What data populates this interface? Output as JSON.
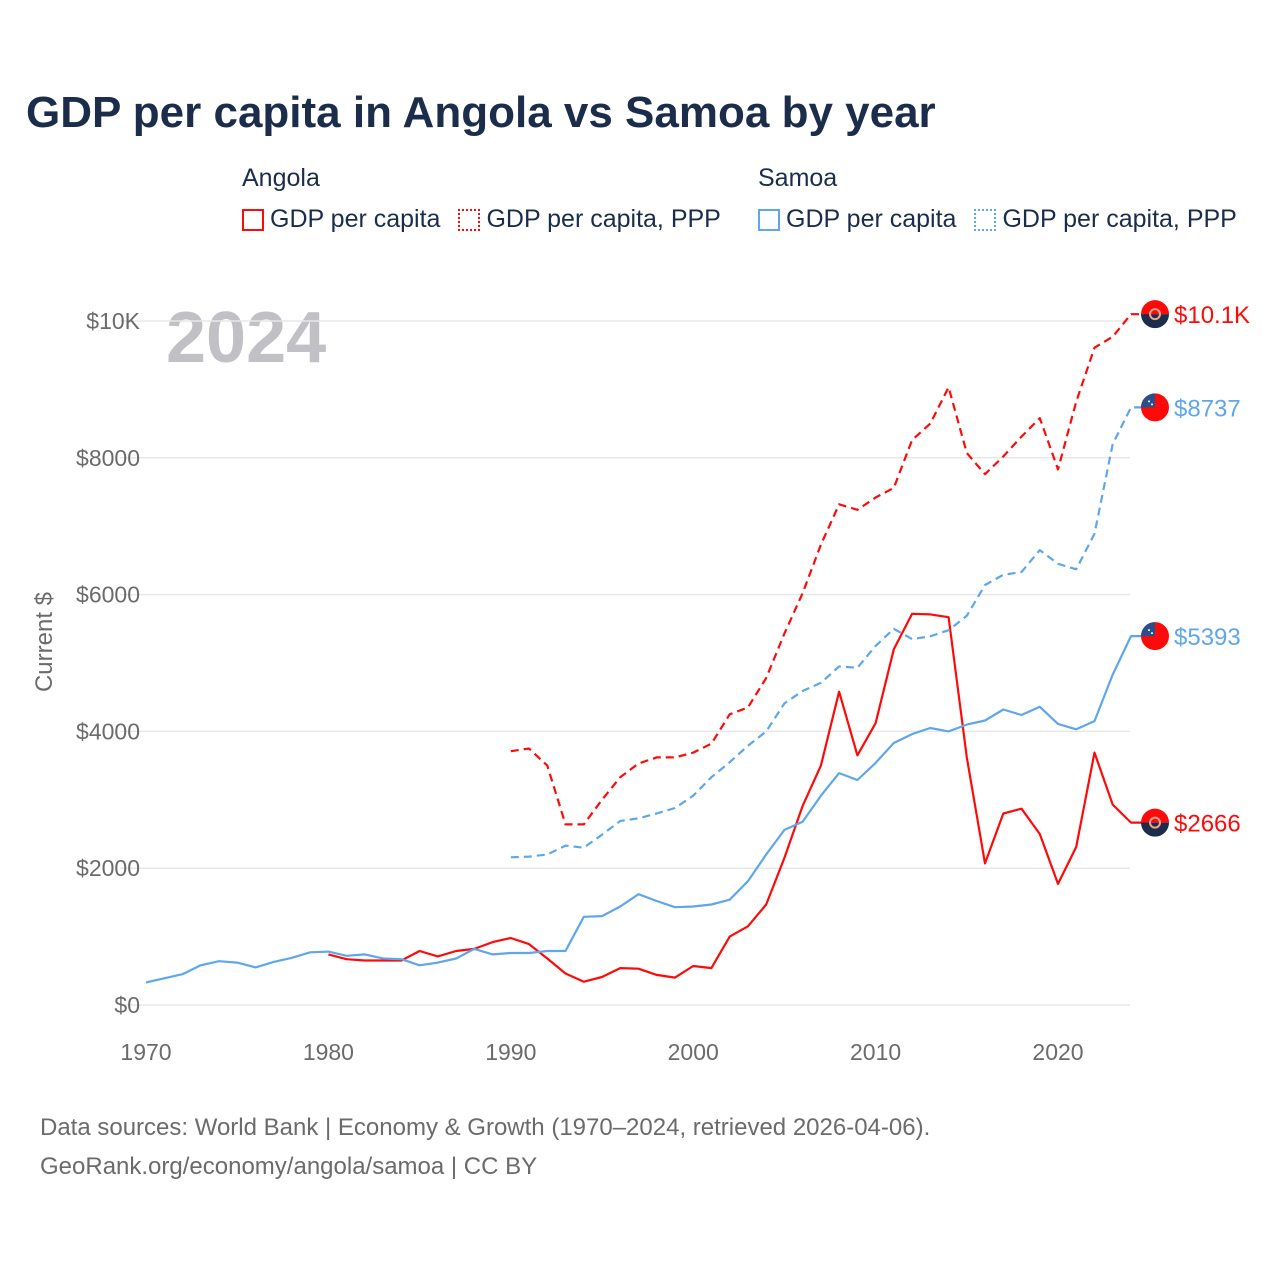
{
  "title": "GDP per capita in Angola vs Samoa by year",
  "legend": {
    "groups": [
      {
        "name": "Angola",
        "items": [
          "GDP per capita",
          "GDP per capita, PPP"
        ]
      },
      {
        "name": "Samoa",
        "items": [
          "GDP per capita",
          "GDP per capita, PPP"
        ]
      }
    ]
  },
  "colors": {
    "angola": "#ff0a0a",
    "samoa": "#5fa6ea",
    "grid": "#e8e8e8",
    "axis_text": "#6b6b6b",
    "year_watermark": "#c0c0c5"
  },
  "footer": {
    "line1": "Data sources: World Bank | Economy & Growth (1970–2024, retrieved 2026-04-06).",
    "line2": "GeoRank.org/economy/angola/samoa | CC BY"
  },
  "chart_data": {
    "type": "line",
    "title": "GDP per capita in Angola vs Samoa by year",
    "year_label": "2024",
    "xlabel": "",
    "ylabel": "Current $",
    "xlim": [
      1970,
      2024
    ],
    "ylim": [
      0,
      10000
    ],
    "xticks": [
      1970,
      1980,
      1990,
      2000,
      2010,
      2020
    ],
    "xtick_labels": [
      "1970",
      "1980",
      "1990",
      "2000",
      "2010",
      "2020"
    ],
    "yticks": [
      0,
      2000,
      4000,
      6000,
      8000,
      10000
    ],
    "ytick_labels": [
      "$0",
      "$2000",
      "$4000",
      "$6000",
      "$8000",
      "$10K"
    ],
    "grid": true,
    "legend_position": "top",
    "series": [
      {
        "name": "Angola GDP per capita",
        "country": "angola",
        "dashed": false,
        "start": 1980,
        "end_label": "$2666",
        "values": [
          740,
          670,
          650,
          650,
          650,
          790,
          710,
          790,
          820,
          920,
          980,
          890,
          680,
          460,
          340,
          410,
          540,
          530,
          440,
          400,
          570,
          540,
          1000,
          1150,
          1470,
          2150,
          2910,
          3500,
          4580,
          3650,
          4120,
          5200,
          5720,
          5710,
          5670,
          3620,
          2070,
          2800,
          2870,
          2500,
          1770,
          2310,
          3690,
          2930,
          2666
        ]
      },
      {
        "name": "Angola GDP per capita, PPP",
        "country": "angola",
        "dashed": true,
        "start": 1990,
        "end_label": "$10.1K",
        "values": [
          3710,
          3750,
          3500,
          2640,
          2640,
          3000,
          3330,
          3530,
          3620,
          3620,
          3690,
          3820,
          4250,
          4350,
          4780,
          5430,
          6020,
          6730,
          7320,
          7240,
          7420,
          7560,
          8260,
          8500,
          9030,
          8070,
          7760,
          8020,
          8310,
          8580,
          7830,
          8820,
          9610,
          9770,
          10100
        ]
      },
      {
        "name": "Samoa GDP per capita",
        "country": "samoa",
        "dashed": false,
        "start": 1970,
        "end_label": "$5393",
        "values": [
          330,
          390,
          450,
          580,
          640,
          620,
          550,
          630,
          690,
          770,
          780,
          720,
          740,
          680,
          670,
          580,
          620,
          680,
          820,
          740,
          760,
          760,
          790,
          790,
          1290,
          1300,
          1440,
          1620,
          1520,
          1430,
          1440,
          1470,
          1540,
          1810,
          2200,
          2560,
          2680,
          3060,
          3390,
          3290,
          3540,
          3830,
          3960,
          4050,
          4000,
          4100,
          4160,
          4320,
          4240,
          4360,
          4110,
          4030,
          4150,
          4830,
          5393
        ]
      },
      {
        "name": "Samoa GDP per capita, PPP",
        "country": "samoa",
        "dashed": true,
        "start": 1990,
        "end_label": "$8737",
        "values": [
          2160,
          2170,
          2200,
          2330,
          2300,
          2490,
          2690,
          2730,
          2800,
          2880,
          3060,
          3330,
          3550,
          3790,
          4000,
          4410,
          4590,
          4710,
          4950,
          4930,
          5250,
          5500,
          5350,
          5390,
          5480,
          5690,
          6140,
          6290,
          6330,
          6650,
          6450,
          6370,
          6890,
          8200,
          8737
        ]
      }
    ]
  }
}
